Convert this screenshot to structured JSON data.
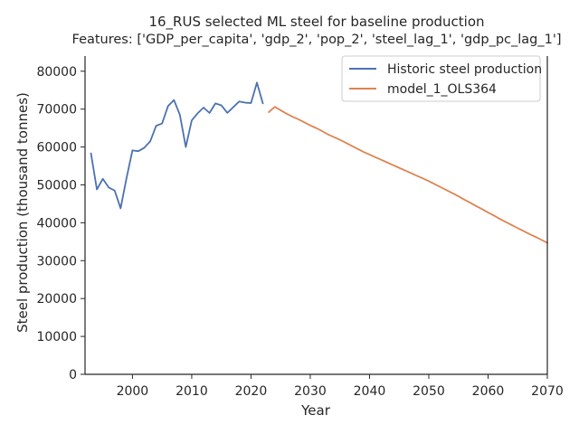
{
  "chart_data": {
    "type": "line",
    "title": "16_RUS selected ML steel for baseline production",
    "subtitle": "Features: ['GDP_per_capita', 'gdp_2', 'pop_2', 'steel_lag_1', 'gdp_pc_lag_1']",
    "xlabel": "Year",
    "ylabel": "Steel production (thousand tonnes)",
    "xlim": [
      1992,
      2070
    ],
    "ylim": [
      0,
      84000
    ],
    "x_ticks": [
      2000,
      2010,
      2020,
      2030,
      2040,
      2050,
      2060,
      2070
    ],
    "y_ticks": [
      0,
      10000,
      20000,
      30000,
      40000,
      50000,
      60000,
      70000,
      80000
    ],
    "grid": false,
    "legend_position": "top-right",
    "series": [
      {
        "name": "Historic steel production",
        "color": "#4c72b0",
        "x": [
          1993,
          1994,
          1995,
          1996,
          1997,
          1998,
          1999,
          2000,
          2001,
          2002,
          2003,
          2004,
          2005,
          2006,
          2007,
          2008,
          2009,
          2010,
          2011,
          2012,
          2013,
          2014,
          2015,
          2016,
          2017,
          2018,
          2019,
          2020,
          2021,
          2022
        ],
        "y": [
          58300,
          48800,
          51600,
          49300,
          48500,
          43800,
          51800,
          59100,
          58900,
          59800,
          61500,
          65600,
          66200,
          70800,
          72400,
          68500,
          60000,
          67000,
          68900,
          70400,
          69000,
          71500,
          71000,
          69000,
          70500,
          72000,
          71700,
          71600,
          77000,
          71500
        ]
      },
      {
        "name": "model_1_OLS364",
        "color": "#dd8452",
        "x": [
          2023,
          2024,
          2025,
          2026,
          2027,
          2028,
          2029,
          2030,
          2031,
          2032,
          2033,
          2034,
          2035,
          2036,
          2037,
          2038,
          2039,
          2040,
          2041,
          2042,
          2043,
          2044,
          2045,
          2046,
          2047,
          2048,
          2049,
          2050,
          2051,
          2052,
          2053,
          2054,
          2055,
          2056,
          2057,
          2058,
          2059,
          2060,
          2061,
          2062,
          2063,
          2064,
          2065,
          2066,
          2067,
          2068,
          2069,
          2070
        ],
        "y": [
          69200,
          70600,
          69700,
          68800,
          68000,
          67300,
          66500,
          65700,
          65000,
          64200,
          63300,
          62600,
          61900,
          61100,
          60300,
          59500,
          58700,
          58000,
          57300,
          56600,
          55900,
          55200,
          54500,
          53800,
          53100,
          52400,
          51700,
          51000,
          50200,
          49400,
          48600,
          47800,
          47000,
          46100,
          45300,
          44400,
          43600,
          42700,
          41900,
          41000,
          40200,
          39400,
          38600,
          37800,
          37000,
          36300,
          35500,
          34700
        ]
      }
    ]
  }
}
